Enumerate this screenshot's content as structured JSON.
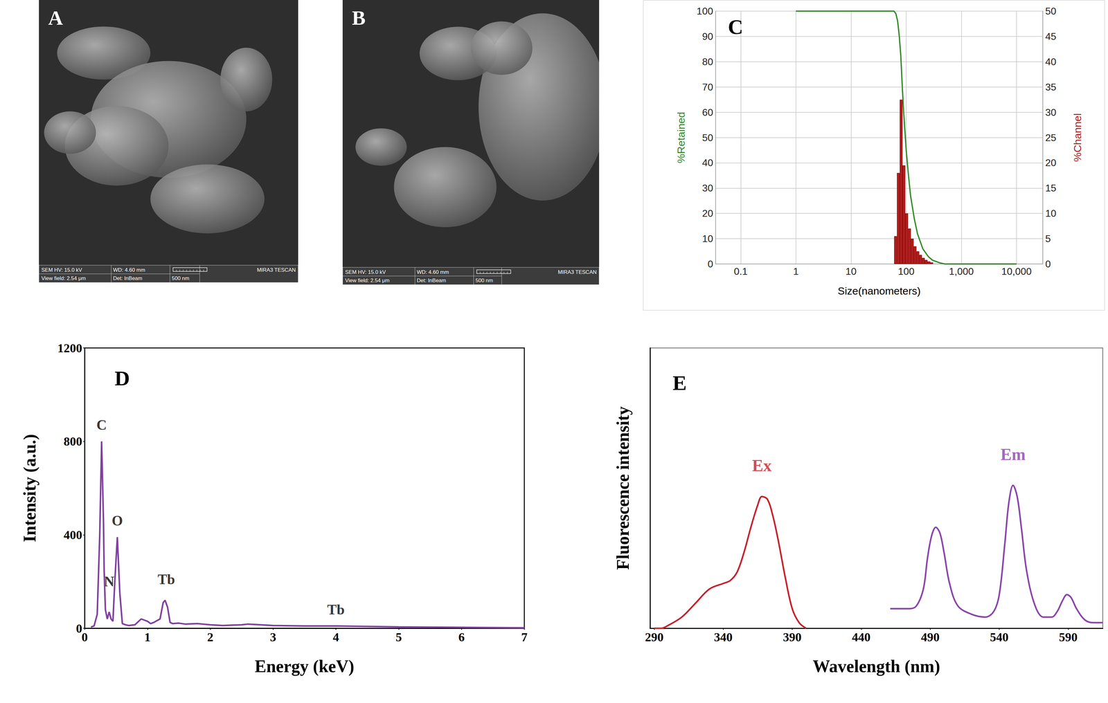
{
  "images": [
    {
      "label": "A",
      "microscope": "MIRA3 TESCAN",
      "fields": [
        "SEM HV: 15.0 kV",
        "WD: 4.60 mm",
        "View field: 2.54 μm",
        "Det: InBeam"
      ],
      "scale_bar": "500 nm"
    },
    {
      "label": "B",
      "microscope": "MIRA3 TESCAN",
      "fields": [
        "SEM HV: 15.0 kV",
        "WD: 4.60 mm",
        "View field: 2.54 μm",
        "Det: InBeam"
      ],
      "scale_bar": "500 nm"
    }
  ],
  "chart_data": [
    {
      "label": "C",
      "type": "combo",
      "x_label": "Size(nanometers)",
      "y_label": "%Retained",
      "y2_label": "%Channel",
      "log": "x",
      "grid": true,
      "xlim": [
        0.035,
        30000
      ],
      "xticks": [
        0.1,
        1,
        10,
        100,
        {
          "value": 1000,
          "label": "1,000"
        },
        {
          "value": 10000,
          "label": "10,000"
        }
      ],
      "ylim": [
        0,
        100
      ],
      "yticks": [
        0,
        10,
        20,
        30,
        40,
        50,
        60,
        70,
        80,
        90,
        100
      ],
      "y2lim": [
        0,
        50
      ],
      "y2ticks": [
        0,
        5,
        10,
        15,
        20,
        25,
        30,
        35,
        40,
        45,
        50
      ],
      "series": [
        {
          "type": "line",
          "color": "#2e8b22",
          "x": [
            1,
            10,
            50,
            60,
            65,
            70,
            75,
            80,
            85,
            90,
            100,
            110,
            120,
            140,
            160,
            200,
            250,
            300,
            400,
            500,
            1000,
            10000
          ],
          "values": [
            100,
            100,
            100,
            100,
            99,
            96,
            90,
            82,
            70,
            60,
            45,
            35,
            27,
            18,
            12,
            6,
            3,
            1.5,
            0.5,
            0,
            0,
            0
          ]
        },
        {
          "type": "bar",
          "axis": "y2",
          "color": "#b01e1e",
          "x": [
            64,
            72,
            81,
            91,
            102,
            115,
            129,
            145,
            163,
            182,
            205,
            230,
            259,
            290
          ],
          "values": [
            5.5,
            18,
            32.5,
            19.5,
            10,
            7,
            5,
            3.5,
            2.5,
            1.8,
            1.2,
            0.8,
            0.5,
            0.3
          ]
        }
      ]
    },
    {
      "label": "D",
      "type": "line",
      "x_label": "Energy (keV)",
      "y_label": "Intensity (a.u.)",
      "grid": false,
      "color": "#8040a0",
      "xlim": [
        0,
        7
      ],
      "xticks": [
        0,
        1,
        2,
        3,
        4,
        5,
        6,
        7
      ],
      "ylim": [
        0,
        1200
      ],
      "yticks": [
        0,
        400,
        800,
        1200
      ],
      "x": [
        0.1,
        0.15,
        0.2,
        0.24,
        0.27,
        0.3,
        0.31,
        0.33,
        0.36,
        0.39,
        0.42,
        0.45,
        0.48,
        0.52,
        0.56,
        0.6,
        0.65,
        0.7,
        0.8,
        0.9,
        0.95,
        1.0,
        1.05,
        1.1,
        1.2,
        1.25,
        1.28,
        1.32,
        1.36,
        1.4,
        1.5,
        1.6,
        1.8,
        2.0,
        2.2,
        2.5,
        2.6,
        3.0,
        3.5,
        4.0,
        4.5,
        5.0,
        5.5,
        6.0,
        6.5,
        7.0
      ],
      "values": [
        5,
        10,
        60,
        400,
        800,
        450,
        250,
        80,
        40,
        70,
        40,
        30,
        200,
        390,
        150,
        20,
        15,
        12,
        15,
        40,
        35,
        30,
        20,
        25,
        40,
        110,
        120,
        90,
        25,
        20,
        22,
        18,
        20,
        15,
        12,
        15,
        18,
        12,
        10,
        10,
        8,
        6,
        5,
        4,
        3,
        2
      ],
      "annotations": [
        {
          "text": "C",
          "x": 0.27,
          "y": 870
        },
        {
          "text": "N",
          "x": 0.39,
          "y": 200
        },
        {
          "text": "O",
          "x": 0.52,
          "y": 460
        },
        {
          "text": "Tb",
          "x": 1.3,
          "y": 210
        },
        {
          "text": "Tb",
          "x": 4.0,
          "y": 80
        }
      ]
    },
    {
      "label": "E",
      "type": "line",
      "x_label": "Wavelength (nm)",
      "y_label": "Fluorescence intensity",
      "grid": false,
      "tick_labels": "x",
      "xlim": [
        287,
        615
      ],
      "xticks": [
        290,
        340,
        390,
        440,
        490,
        540,
        590
      ],
      "ylim": [
        0,
        100
      ],
      "series": [
        {
          "color": "#c8202a",
          "x": [
            290,
            295,
            300,
            310,
            320,
            330,
            340,
            345,
            350,
            355,
            360,
            365,
            368,
            372,
            376,
            380,
            385,
            390,
            395,
            400
          ],
          "values": [
            0,
            0,
            1,
            4,
            9,
            14,
            16,
            17,
            20,
            27,
            36,
            44,
            47,
            46,
            40,
            31,
            18,
            7,
            2,
            0
          ]
        },
        {
          "color": "#8b44ac",
          "x": [
            461,
            475,
            480,
            485,
            488,
            491,
            494,
            497,
            500,
            504,
            510,
            520,
            530,
            536,
            540,
            544,
            547,
            550,
            553,
            556,
            560,
            566,
            572,
            578,
            582,
            586,
            589,
            592,
            596,
            602,
            608,
            615
          ],
          "values": [
            7,
            7,
            8,
            14,
            25,
            33,
            36,
            34,
            27,
            16,
            8,
            5,
            4,
            6,
            12,
            30,
            45,
            51,
            47,
            36,
            20,
            8,
            4,
            4,
            6,
            10,
            12,
            11,
            7,
            3,
            2,
            2
          ]
        }
      ],
      "annotations": [
        {
          "text": "Ex",
          "x": 368,
          "y": 58,
          "color": "#c8202a"
        },
        {
          "text": "Em",
          "x": 550,
          "y": 62,
          "color": "#8b44ac"
        }
      ]
    }
  ]
}
